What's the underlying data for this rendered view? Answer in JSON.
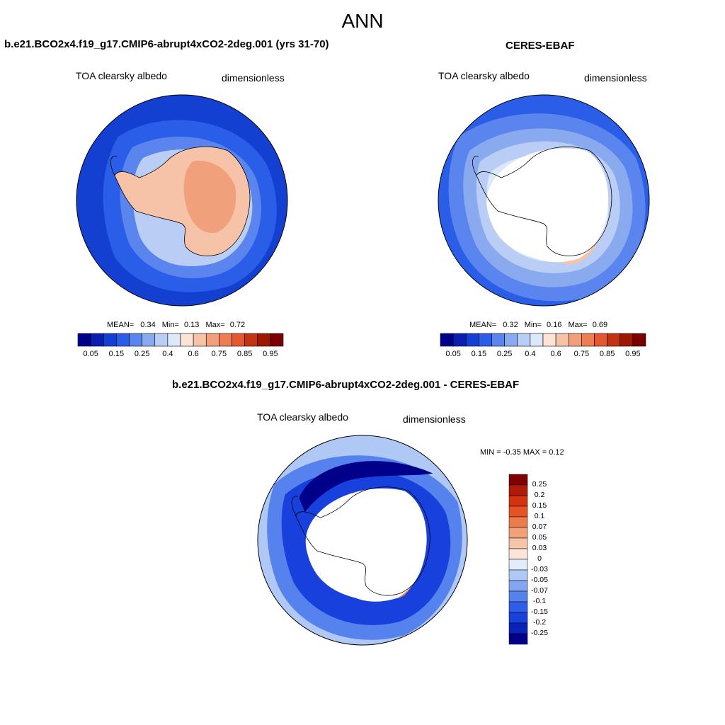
{
  "title": "ANN",
  "colors": {
    "seq": [
      "#00008b",
      "#0a1fb0",
      "#1440d2",
      "#2b5ee8",
      "#5a84ee",
      "#8aaaf0",
      "#b9cdf5",
      "#dde8fa",
      "#fbe4d6",
      "#f6c3a8",
      "#f0a07a",
      "#ee7d4f",
      "#e3582e",
      "#c43313",
      "#9e1606",
      "#7a0000"
    ],
    "diff": [
      "#00008b",
      "#0b22b8",
      "#1840dc",
      "#2f5fe8",
      "#5582ed",
      "#84a5f0",
      "#b0c8f5",
      "#e3ecfb",
      "#fbe5d8",
      "#f6c4a8",
      "#f1a07a",
      "#ec7c4d",
      "#e65325",
      "#d43310",
      "#b01a06",
      "#7f0000"
    ]
  },
  "panels": [
    {
      "header": "b.e21.BCO2x4.f19_g17.CMIP6-abrupt4xCO2-2deg.001 (yrs 31-70)",
      "variable": "TOA clearsky albedo",
      "units": "dimensionless",
      "mean_label": "MEAN=",
      "mean": "0.34",
      "min_label": "Min=",
      "min": "0.13",
      "max_label": "Max=",
      "max": "0.72",
      "ticks": [
        "0.05",
        "0.15",
        "0.25",
        "0.4",
        "0.6",
        "0.75",
        "0.85",
        "0.95"
      ]
    },
    {
      "header": "CERES-EBAF",
      "variable": "TOA clearsky albedo",
      "units": "dimensionless",
      "mean_label": "MEAN=",
      "mean": "0.32",
      "min_label": "Min=",
      "min": "0.16",
      "max_label": "Max=",
      "max": "0.69",
      "ticks": [
        "0.05",
        "0.15",
        "0.25",
        "0.4",
        "0.6",
        "0.75",
        "0.85",
        "0.95"
      ]
    }
  ],
  "diff_panel": {
    "header": "b.e21.BCO2x4.f19_g17.CMIP6-abrupt4xCO2-2deg.001 - CERES-EBAF",
    "variable": "TOA clearsky albedo",
    "units": "dimensionless",
    "minmax": "MIN =  -0.35 MAX =   0.12",
    "ticks": [
      "0.25",
      "0.2",
      "0.15",
      "0.1",
      "0.07",
      "0.05",
      "0.03",
      "0",
      "-0.03",
      "-0.05",
      "-0.07",
      "-0.1",
      "-0.15",
      "-0.2",
      "-0.25"
    ]
  }
}
